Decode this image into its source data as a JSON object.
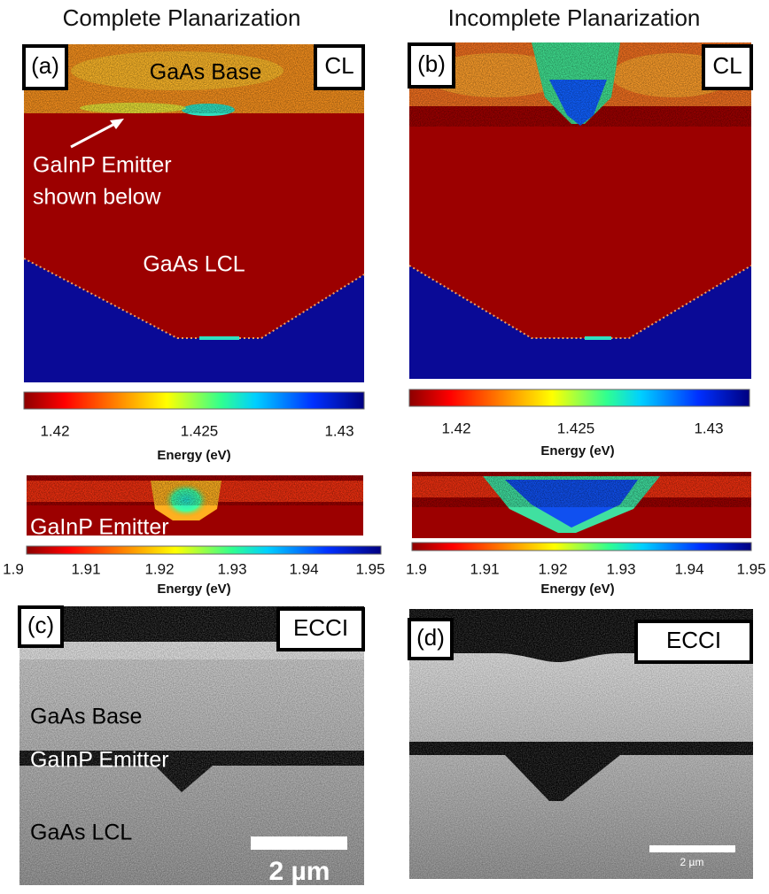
{
  "columns": [
    {
      "title": "Complete Planarization",
      "cl": {
        "label": "(a)",
        "tag": "CL",
        "annotations": [
          "GaAs Base",
          "GaInP Emitter",
          "shown below",
          "GaAs LCL"
        ]
      },
      "cl_colorbar": {
        "ticks": [
          "1.42",
          "1.425",
          "1.43"
        ],
        "axis_label": "Energy (eV)"
      },
      "emitter": {
        "annotation": "GaInP Emitter"
      },
      "emitter_colorbar": {
        "ticks": [
          "1.9",
          "1.91",
          "1.92",
          "1.93",
          "1.94",
          "1.95"
        ],
        "axis_label": "Energy (eV)"
      },
      "ecci": {
        "label": "(c)",
        "tag": "ECCI",
        "annotations": [
          "GaAs Base",
          "GaInP Emitter",
          "GaAs LCL"
        ],
        "scale_bar": "2 µm"
      }
    },
    {
      "title": "Incomplete Planarization",
      "cl": {
        "label": "(b)",
        "tag": "CL"
      },
      "cl_colorbar": {
        "ticks": [
          "1.42",
          "1.425",
          "1.43"
        ],
        "axis_label": "Energy (eV)"
      },
      "emitter_colorbar": {
        "ticks": [
          "1.9",
          "1.91",
          "1.92",
          "1.93",
          "1.94",
          "1.95"
        ],
        "axis_label": "Energy (eV)"
      },
      "ecci": {
        "label": "(d)",
        "tag": "ECCI",
        "scale_bar": "2 µm"
      }
    }
  ]
}
